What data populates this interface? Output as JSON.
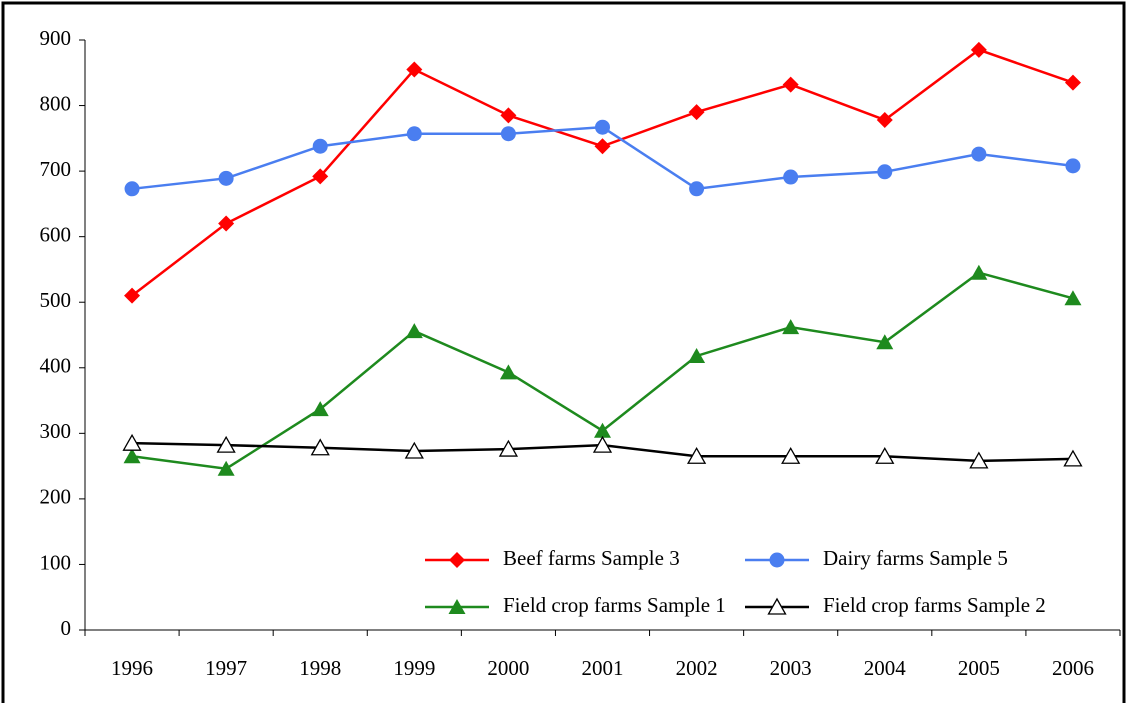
{
  "chart_data": {
    "type": "line",
    "categories": [
      "1996",
      "1997",
      "1998",
      "1999",
      "2000",
      "2001",
      "2002",
      "2003",
      "2004",
      "2005",
      "2006"
    ],
    "series": [
      {
        "name": "Beef farms Sample 3",
        "color": "#ff0000",
        "marker": "diamond",
        "values": [
          510,
          620,
          692,
          855,
          785,
          738,
          790,
          832,
          778,
          885,
          835
        ]
      },
      {
        "name": "Dairy farms Sample 5",
        "color": "#4a7ef0",
        "marker": "circle",
        "values": [
          673,
          689,
          738,
          757,
          757,
          767,
          673,
          691,
          699,
          726,
          708
        ]
      },
      {
        "name": "Field crop farms Sample 1",
        "color": "#1e8a1e",
        "marker": "triangle",
        "values": [
          265,
          246,
          337,
          456,
          393,
          304,
          418,
          462,
          439,
          545,
          506
        ]
      },
      {
        "name": "Field crop farms Sample 2",
        "color": "#000000",
        "marker": "open-triangle",
        "values": [
          285,
          282,
          278,
          273,
          276,
          282,
          265,
          265,
          265,
          258,
          261
        ]
      }
    ],
    "ylim": [
      0,
      900
    ],
    "yticks": [
      0,
      100,
      200,
      300,
      400,
      500,
      600,
      700,
      800,
      900
    ],
    "grid": false,
    "legend": "lower right"
  }
}
